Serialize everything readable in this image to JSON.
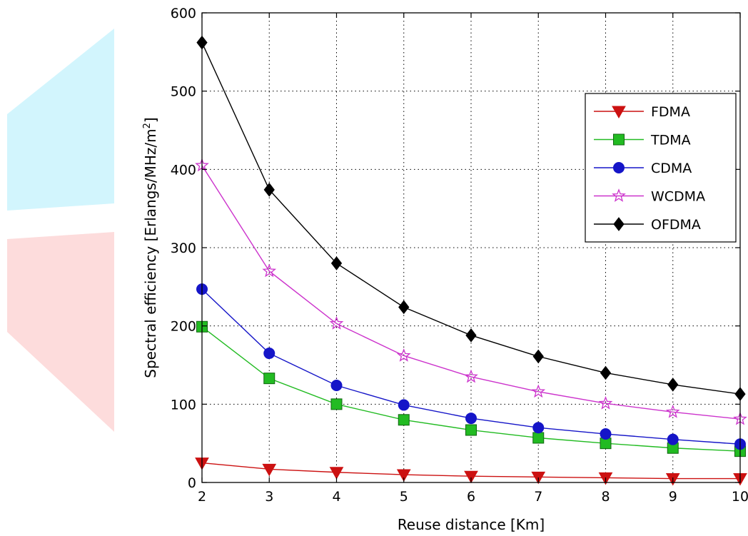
{
  "chart_data": {
    "type": "line",
    "title": "",
    "xlabel": "Reuse distance [Km]",
    "ylabel_main": "Spectral efficiency [Erlangs/MHz/m",
    "ylabel_sup": "2",
    "ylabel_close": "]",
    "x": [
      2,
      3,
      4,
      5,
      6,
      7,
      8,
      9,
      10
    ],
    "xlim": [
      2,
      10
    ],
    "ylim": [
      0,
      600
    ],
    "xticks": [
      2,
      3,
      4,
      5,
      6,
      7,
      8,
      9,
      10
    ],
    "yticks": [
      0,
      100,
      200,
      300,
      400,
      500,
      600
    ],
    "grid": true,
    "legend_position": "top-right",
    "series": [
      {
        "name": "FDMA",
        "color": "#cc1111",
        "marker": "triangle-down",
        "values": [
          25,
          17,
          13,
          10,
          8,
          7,
          6,
          5,
          5
        ]
      },
      {
        "name": "TDMA",
        "color": "#22bb22",
        "marker": "square",
        "values": [
          199,
          133,
          100,
          80,
          67,
          57,
          50,
          44,
          40
        ]
      },
      {
        "name": "CDMA",
        "color": "#1515c8",
        "marker": "circle",
        "values": [
          247,
          165,
          124,
          99,
          82,
          70,
          62,
          55,
          49
        ]
      },
      {
        "name": "WCDMA",
        "color": "#cc33cc",
        "marker": "star",
        "values": [
          405,
          270,
          203,
          162,
          135,
          116,
          101,
          90,
          81
        ]
      },
      {
        "name": "OFDMA",
        "color": "#000000",
        "marker": "diamond",
        "values": [
          562,
          374,
          280,
          224,
          188,
          161,
          140,
          125,
          113
        ]
      }
    ]
  }
}
